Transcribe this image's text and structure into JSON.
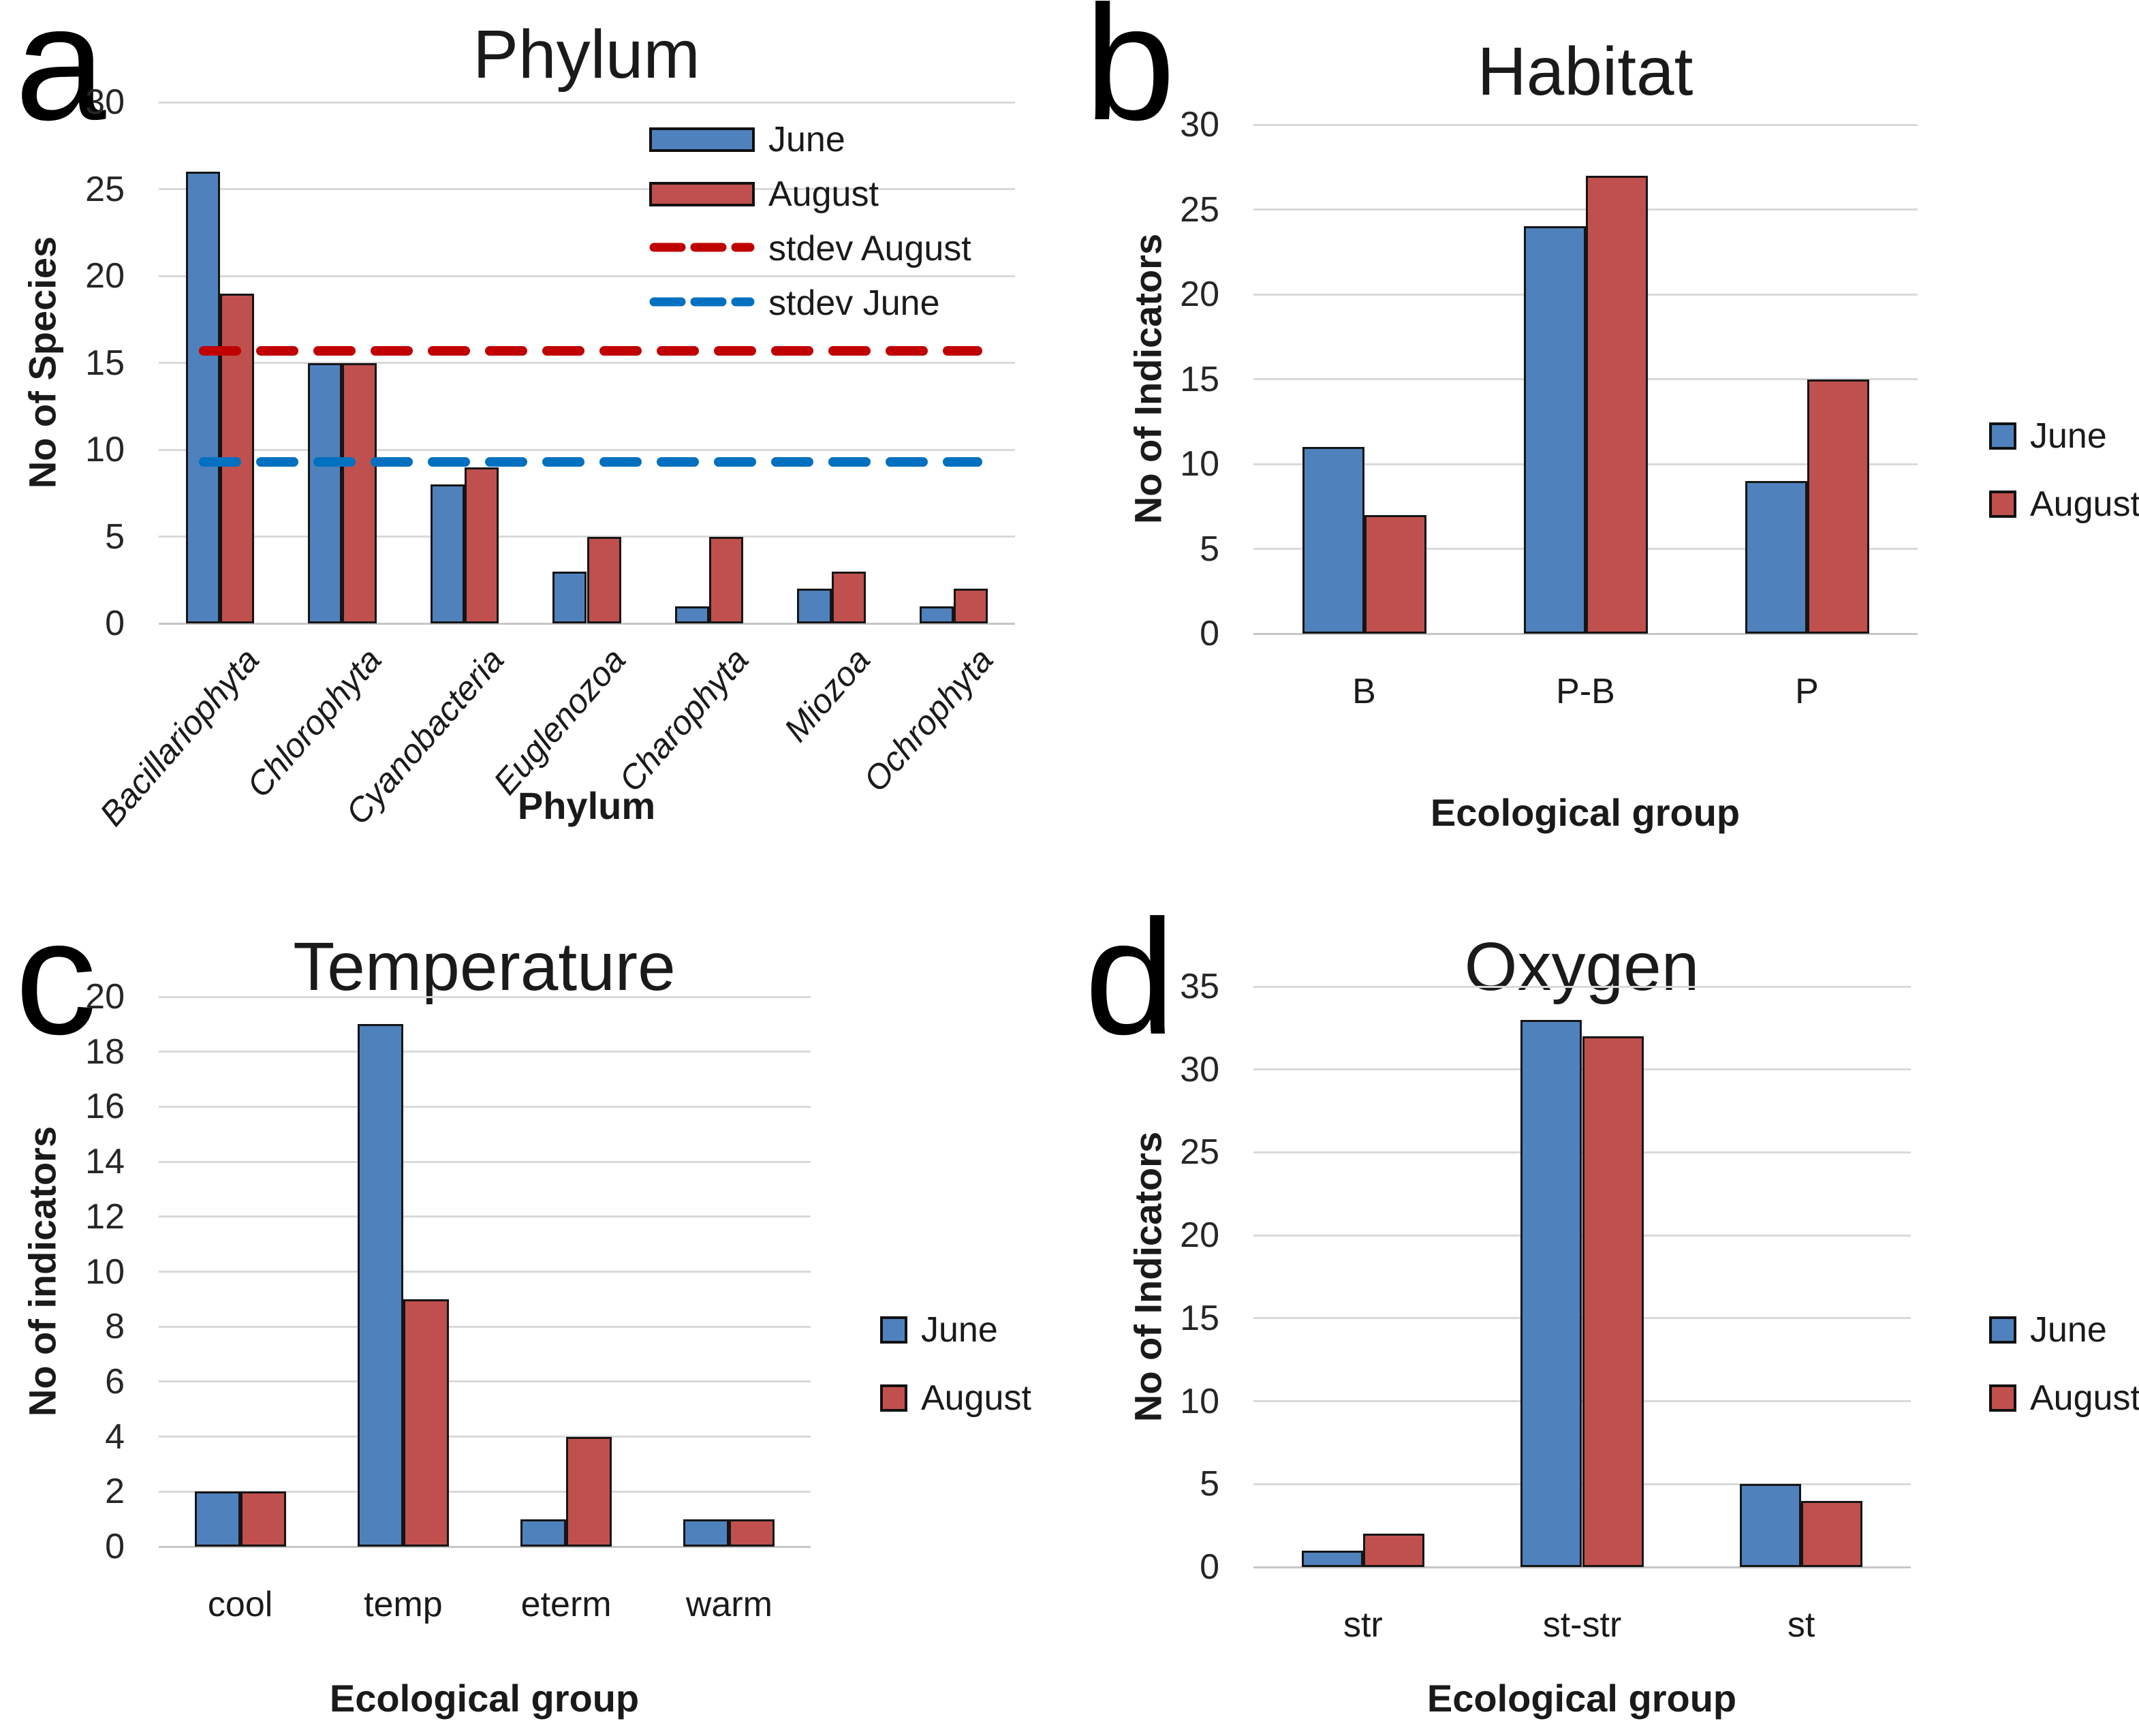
{
  "figure": {
    "series_colors": {
      "June": "#4F81BD",
      "August": "#C0504D"
    },
    "bar_outline_color": "#151515",
    "grid_color": "#D9D9D9",
    "text_color": "#1A1A1A"
  },
  "chart_data": [
    {
      "panel": "a",
      "type": "bar",
      "title": "Phylum",
      "ylabel": "No of Species",
      "xlabel": "Phylum",
      "ylim": [
        0,
        30
      ],
      "ytick_step": 5,
      "grid": true,
      "legend_position": "inside-top-right",
      "category_style": "italic-rotated",
      "categories": [
        "Bacillariophyta",
        "Chlorophyta",
        "Cyanobacteria",
        "Euglenozoa",
        "Charophyta",
        "Miozoa",
        "Ochrophyta"
      ],
      "series": [
        {
          "name": "June",
          "values": [
            26,
            15,
            8,
            3,
            1,
            2,
            1
          ]
        },
        {
          "name": "August",
          "values": [
            19,
            15,
            9,
            5,
            5,
            3,
            2
          ]
        }
      ],
      "ref_lines": [
        {
          "name": "stdev August",
          "value": 15.7,
          "color": "#C00000"
        },
        {
          "name": "stdev June",
          "value": 9.3,
          "color": "#0070C0"
        }
      ],
      "legend_items": [
        "June",
        "August",
        "stdev August",
        "stdev June"
      ]
    },
    {
      "panel": "b",
      "type": "bar",
      "title": "Habitat",
      "ylabel": "No of Indicators",
      "xlabel": "Ecological group",
      "ylim": [
        0,
        30
      ],
      "ytick_step": 5,
      "grid": true,
      "legend_position": "right",
      "category_style": "plain",
      "categories": [
        "B",
        "P-B",
        "P"
      ],
      "series": [
        {
          "name": "June",
          "values": [
            11,
            24,
            9
          ]
        },
        {
          "name": "August",
          "values": [
            7,
            27,
            15
          ]
        }
      ],
      "ref_lines": [],
      "legend_items": [
        "June",
        "August"
      ]
    },
    {
      "panel": "c",
      "type": "bar",
      "title": "Temperature",
      "ylabel": "No of indicators",
      "xlabel": "Ecological group",
      "ylim": [
        0,
        20
      ],
      "ytick_step": 2,
      "grid": true,
      "legend_position": "right",
      "category_style": "plain",
      "categories": [
        "cool",
        "temp",
        "eterm",
        "warm"
      ],
      "series": [
        {
          "name": "June",
          "values": [
            2,
            19,
            1,
            1
          ]
        },
        {
          "name": "August",
          "values": [
            2,
            9,
            4,
            1
          ]
        }
      ],
      "ref_lines": [],
      "legend_items": [
        "June",
        "August"
      ]
    },
    {
      "panel": "d",
      "type": "bar",
      "title": "Oxygen",
      "ylabel": "No of Indicators",
      "xlabel": "Ecological group",
      "ylim": [
        0,
        35
      ],
      "ytick_step": 5,
      "grid": true,
      "legend_position": "right",
      "category_style": "plain",
      "categories": [
        "str",
        "st-str",
        "st"
      ],
      "series": [
        {
          "name": "June",
          "values": [
            1,
            33,
            5
          ]
        },
        {
          "name": "August",
          "values": [
            2,
            32,
            4
          ]
        }
      ],
      "ref_lines": [],
      "legend_items": [
        "June",
        "August"
      ]
    }
  ]
}
